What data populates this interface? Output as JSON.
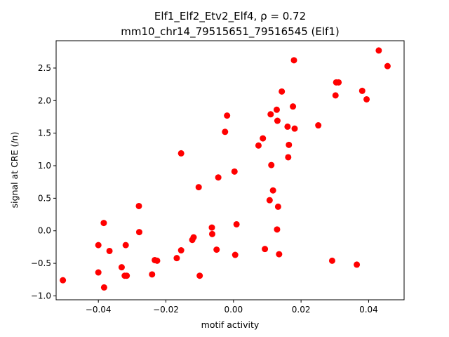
{
  "chart_data": {
    "type": "scatter",
    "title_line1": "Elf1_Elf2_Etv2_Elf4, ρ = 0.72",
    "title_line2": "mm10_chr14_79515651_79516545 (Elf1)",
    "xlabel": "motif activity",
    "ylabel": "signal at CRE (/n)",
    "xlim": [
      -0.0525,
      0.0505
    ],
    "ylim": [
      -1.06,
      2.92
    ],
    "x_ticks": [
      -0.04,
      -0.02,
      0.0,
      0.02,
      0.04
    ],
    "x_tick_labels": [
      "−0.04",
      "−0.02",
      "0.00",
      "0.02",
      "0.04"
    ],
    "y_ticks": [
      -1.0,
      -0.5,
      0.0,
      0.5,
      1.0,
      1.5,
      2.0,
      2.5
    ],
    "y_tick_labels": [
      "−1.0",
      "−0.5",
      "0.0",
      "0.5",
      "1.0",
      "1.5",
      "2.0",
      "2.5"
    ],
    "marker_color": "#ff0000",
    "points": [
      {
        "x": -0.0505,
        "y": -0.76
      },
      {
        "x": -0.04,
        "y": -0.22
      },
      {
        "x": -0.04,
        "y": -0.64
      },
      {
        "x": -0.0384,
        "y": 0.12
      },
      {
        "x": -0.0383,
        "y": -0.87
      },
      {
        "x": -0.0367,
        "y": -0.31
      },
      {
        "x": -0.0331,
        "y": -0.56
      },
      {
        "x": -0.0322,
        "y": -0.69
      },
      {
        "x": -0.0319,
        "y": -0.22
      },
      {
        "x": -0.0316,
        "y": -0.69
      },
      {
        "x": -0.028,
        "y": 0.38
      },
      {
        "x": -0.0279,
        "y": -0.02
      },
      {
        "x": -0.0241,
        "y": -0.67
      },
      {
        "x": -0.0233,
        "y": -0.45
      },
      {
        "x": -0.0226,
        "y": -0.46
      },
      {
        "x": -0.0168,
        "y": -0.42
      },
      {
        "x": -0.0155,
        "y": -0.3
      },
      {
        "x": -0.0155,
        "y": 1.19
      },
      {
        "x": -0.0122,
        "y": -0.14
      },
      {
        "x": -0.0118,
        "y": -0.1
      },
      {
        "x": -0.0103,
        "y": 0.67
      },
      {
        "x": -0.01,
        "y": -0.69
      },
      {
        "x": -0.0064,
        "y": 0.05
      },
      {
        "x": -0.0063,
        "y": -0.05
      },
      {
        "x": -0.005,
        "y": -0.29
      },
      {
        "x": -0.0045,
        "y": 0.82
      },
      {
        "x": -0.0025,
        "y": 1.52
      },
      {
        "x": -0.0019,
        "y": 1.77
      },
      {
        "x": 0.0003,
        "y": 0.91
      },
      {
        "x": 0.0005,
        "y": -0.37
      },
      {
        "x": 0.0009,
        "y": 0.1
      },
      {
        "x": 0.0074,
        "y": 1.31
      },
      {
        "x": 0.0087,
        "y": 1.42
      },
      {
        "x": 0.0093,
        "y": -0.28
      },
      {
        "x": 0.0107,
        "y": 0.47
      },
      {
        "x": 0.011,
        "y": 1.79
      },
      {
        "x": 0.0112,
        "y": 1.01
      },
      {
        "x": 0.0117,
        "y": 0.62
      },
      {
        "x": 0.0128,
        "y": 1.86
      },
      {
        "x": 0.0129,
        "y": 0.02
      },
      {
        "x": 0.013,
        "y": 1.69
      },
      {
        "x": 0.0132,
        "y": 0.37
      },
      {
        "x": 0.0135,
        "y": -0.36
      },
      {
        "x": 0.0143,
        "y": 2.14
      },
      {
        "x": 0.016,
        "y": 1.6
      },
      {
        "x": 0.0162,
        "y": 1.13
      },
      {
        "x": 0.0164,
        "y": 1.32
      },
      {
        "x": 0.0176,
        "y": 1.91
      },
      {
        "x": 0.0179,
        "y": 2.62
      },
      {
        "x": 0.0181,
        "y": 1.57
      },
      {
        "x": 0.0251,
        "y": 1.62
      },
      {
        "x": 0.0292,
        "y": -0.46
      },
      {
        "x": 0.0302,
        "y": 2.08
      },
      {
        "x": 0.0304,
        "y": 2.28
      },
      {
        "x": 0.0311,
        "y": 2.28
      },
      {
        "x": 0.0365,
        "y": -0.52
      },
      {
        "x": 0.0381,
        "y": 2.15
      },
      {
        "x": 0.0394,
        "y": 2.02
      },
      {
        "x": 0.043,
        "y": 2.77
      },
      {
        "x": 0.0456,
        "y": 2.53
      }
    ]
  }
}
